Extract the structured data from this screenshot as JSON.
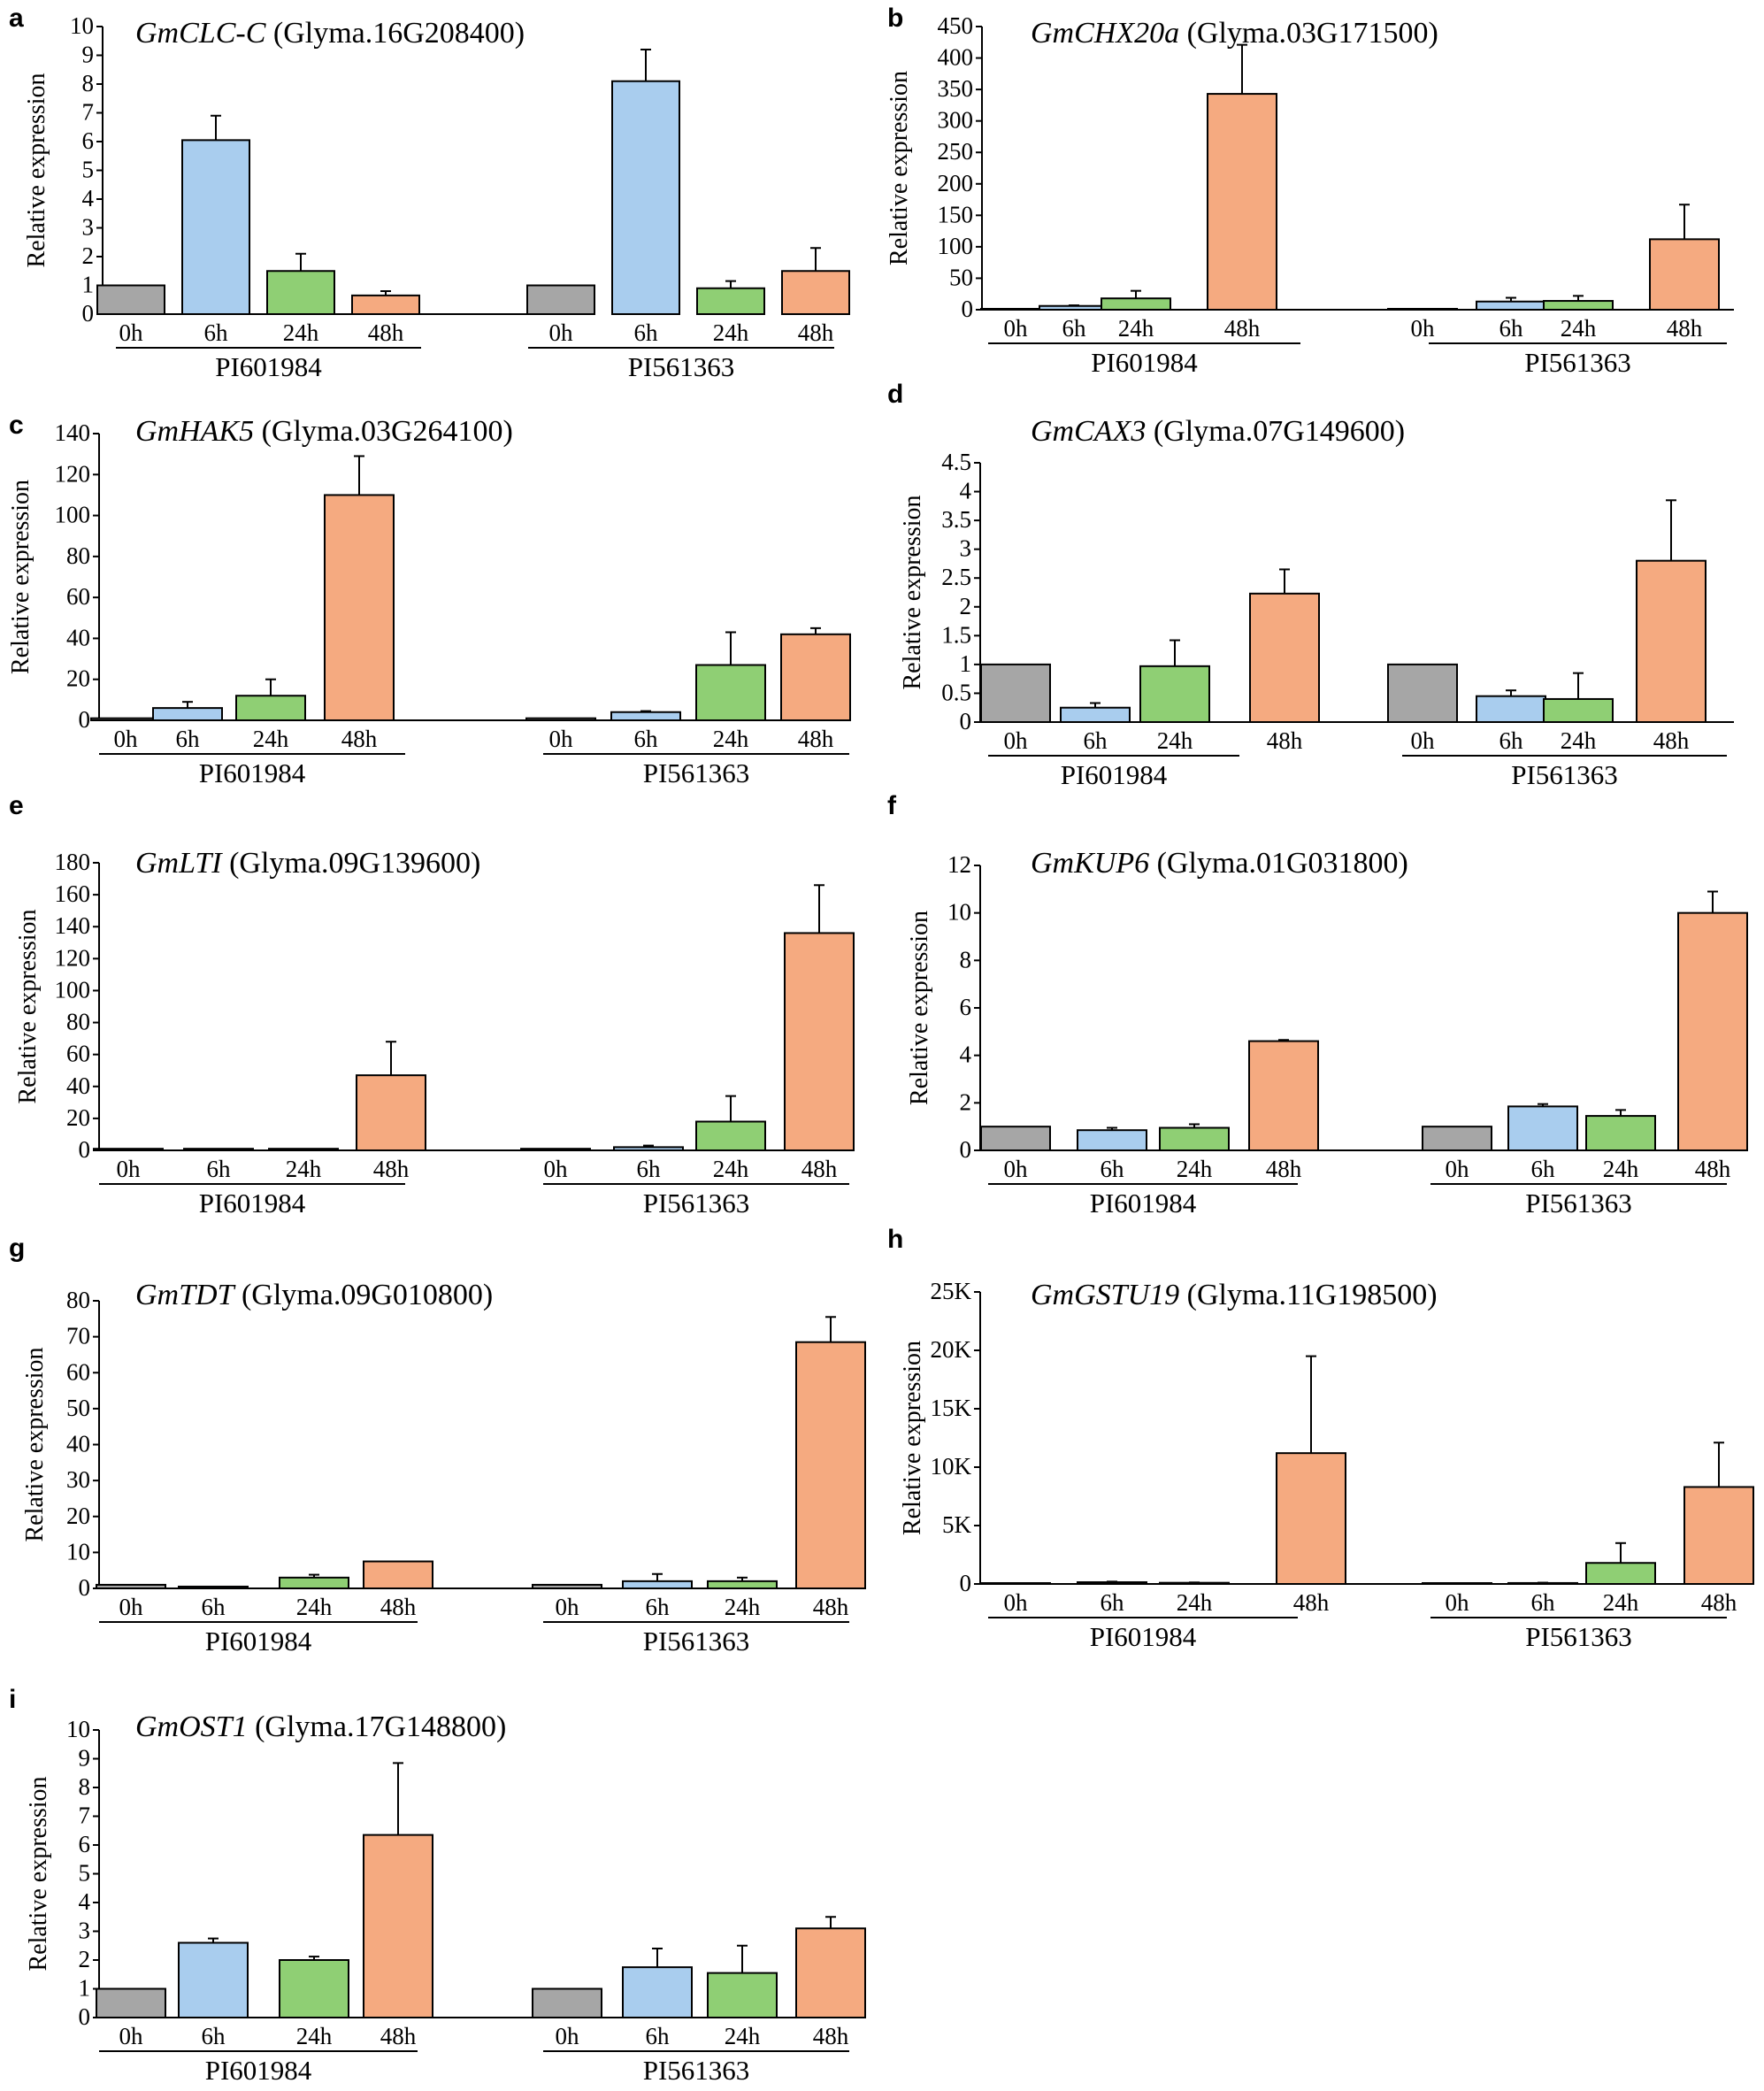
{
  "figure": {
    "ylabel": "Relative expression",
    "time_labels": [
      "0h",
      "6h",
      "24h",
      "48h"
    ],
    "genotypes": [
      "PI601984",
      "PI561363"
    ],
    "colors": {
      "0h": "#a6a6a6",
      "6h": "#a9cdee",
      "24h": "#8fcf74",
      "48h": "#f5aa80",
      "axis": "#000000"
    }
  },
  "chart_data": [
    {
      "panel": "a",
      "type": "bar",
      "gene": "GmCLC-C",
      "locus": "(Glyma.16G208400)",
      "categories": [
        "0h",
        "6h",
        "24h",
        "48h"
      ],
      "groups": [
        "PI601984",
        "PI561363"
      ],
      "series": [
        {
          "name": "PI601984",
          "values": [
            1.0,
            6.05,
            1.5,
            0.65
          ],
          "errors": [
            0.0,
            0.85,
            0.6,
            0.15
          ]
        },
        {
          "name": "PI561363",
          "values": [
            1.0,
            8.1,
            0.9,
            1.5
          ],
          "errors": [
            0.0,
            1.1,
            0.25,
            0.8
          ]
        }
      ],
      "ylabel": "Relative expression",
      "ylim": [
        0,
        10
      ],
      "ticks": [
        0,
        1,
        2,
        3,
        4,
        5,
        6,
        7,
        8,
        9,
        10
      ],
      "tick_labels": [
        "0",
        "1",
        "2",
        "3",
        "4",
        "5",
        "6",
        "7",
        "8",
        "9",
        "10"
      ]
    },
    {
      "panel": "b",
      "type": "bar",
      "gene": "GmCHX20a",
      "locus": "(Glyma.03G171500)",
      "categories": [
        "0h",
        "6h",
        "24h",
        "48h"
      ],
      "groups": [
        "PI601984",
        "PI561363"
      ],
      "series": [
        {
          "name": "PI601984",
          "values": [
            1,
            6,
            18,
            343
          ],
          "errors": [
            0,
            1,
            12,
            78
          ]
        },
        {
          "name": "PI561363",
          "values": [
            1,
            13,
            14,
            112
          ],
          "errors": [
            0,
            6,
            8,
            55
          ]
        }
      ],
      "ylabel": "Relative expression",
      "ylim": [
        0,
        450
      ],
      "ticks": [
        0,
        50,
        100,
        150,
        200,
        250,
        300,
        350,
        400,
        450
      ],
      "tick_labels": [
        "0",
        "50",
        "100",
        "150",
        "200",
        "250",
        "300",
        "350",
        "400",
        "450"
      ]
    },
    {
      "panel": "c",
      "type": "bar",
      "gene": "GmHAK5",
      "locus": "(Glyma.03G264100)",
      "categories": [
        "0h",
        "6h",
        "24h",
        "48h"
      ],
      "groups": [
        "PI601984",
        "PI561363"
      ],
      "series": [
        {
          "name": "PI601984",
          "values": [
            1,
            6,
            12,
            110
          ],
          "errors": [
            0,
            3,
            8,
            19
          ]
        },
        {
          "name": "PI561363",
          "values": [
            1,
            4,
            27,
            42
          ],
          "errors": [
            0,
            0.5,
            16,
            3
          ]
        }
      ],
      "ylabel": "Relative expression",
      "ylim": [
        0,
        140
      ],
      "ticks": [
        0,
        20,
        40,
        60,
        80,
        100,
        120,
        140
      ],
      "tick_labels": [
        "0",
        "20",
        "40",
        "60",
        "80",
        "100",
        "120",
        "140"
      ]
    },
    {
      "panel": "d",
      "type": "bar",
      "gene": "GmCAX3",
      "locus": "(Glyma.07G149600)",
      "categories": [
        "0h",
        "6h",
        "24h",
        "48h"
      ],
      "groups": [
        "PI601984",
        "PI561363"
      ],
      "series": [
        {
          "name": "PI601984",
          "values": [
            1.0,
            0.25,
            0.97,
            2.23
          ],
          "errors": [
            0.0,
            0.08,
            0.45,
            0.42
          ]
        },
        {
          "name": "PI561363",
          "values": [
            1.0,
            0.45,
            0.4,
            2.8
          ],
          "errors": [
            0.0,
            0.1,
            0.45,
            1.05
          ]
        }
      ],
      "ylabel": "Relative expression",
      "ylim": [
        0,
        4.5
      ],
      "ticks": [
        0,
        0.5,
        1,
        1.5,
        2,
        2.5,
        3,
        3.5,
        4,
        4.5
      ],
      "tick_labels": [
        "0",
        "0.5",
        "1",
        "1.5",
        "2",
        "2.5",
        "3",
        "3.5",
        "4",
        "4.5"
      ]
    },
    {
      "panel": "e",
      "type": "bar",
      "gene": "GmLTI",
      "locus": "(Glyma.09G139600)",
      "categories": [
        "0h",
        "6h",
        "24h",
        "48h"
      ],
      "groups": [
        "PI601984",
        "PI561363"
      ],
      "series": [
        {
          "name": "PI601984",
          "values": [
            1,
            1,
            1,
            47
          ],
          "errors": [
            0,
            0,
            0,
            21
          ]
        },
        {
          "name": "PI561363",
          "values": [
            1,
            2,
            18,
            136
          ],
          "errors": [
            0,
            1,
            16,
            30
          ]
        }
      ],
      "ylabel": "Relative expression",
      "ylim": [
        0,
        180
      ],
      "ticks": [
        0,
        20,
        40,
        60,
        80,
        100,
        120,
        140,
        160,
        180
      ],
      "tick_labels": [
        "0",
        "20",
        "40",
        "60",
        "80",
        "100",
        "120",
        "140",
        "160",
        "180"
      ]
    },
    {
      "panel": "f",
      "type": "bar",
      "gene": "GmKUP6",
      "locus": "(Glyma.01G031800)",
      "categories": [
        "0h",
        "6h",
        "24h",
        "48h"
      ],
      "groups": [
        "PI601984",
        "PI561363"
      ],
      "series": [
        {
          "name": "PI601984",
          "values": [
            1.0,
            0.85,
            0.95,
            4.6
          ],
          "errors": [
            0.0,
            0.1,
            0.15,
            0.05
          ]
        },
        {
          "name": "PI561363",
          "values": [
            1.0,
            1.85,
            1.45,
            10.0
          ],
          "errors": [
            0.0,
            0.1,
            0.25,
            0.9
          ]
        }
      ],
      "ylabel": "Relative expression",
      "ylim": [
        0,
        12
      ],
      "ticks": [
        0,
        2,
        4,
        6,
        8,
        10,
        12
      ],
      "tick_labels": [
        "0",
        "2",
        "4",
        "6",
        "8",
        "10",
        "12"
      ]
    },
    {
      "panel": "g",
      "type": "bar",
      "gene": "GmTDT",
      "locus": "(Glyma.09G010800)",
      "categories": [
        "0h",
        "6h",
        "24h",
        "48h"
      ],
      "groups": [
        "PI601984",
        "PI561363"
      ],
      "series": [
        {
          "name": "PI601984",
          "values": [
            1,
            0.5,
            3,
            7.5
          ],
          "errors": [
            0,
            0,
            0.8,
            0
          ]
        },
        {
          "name": "PI561363",
          "values": [
            1,
            2,
            2,
            68.5
          ],
          "errors": [
            0,
            2,
            1,
            7
          ]
        }
      ],
      "ylabel": "Relative expression",
      "ylim": [
        0,
        80
      ],
      "ticks": [
        0,
        10,
        20,
        30,
        40,
        50,
        60,
        70,
        80
      ],
      "tick_labels": [
        "0",
        "10",
        "20",
        "30",
        "40",
        "50",
        "60",
        "70",
        "80"
      ]
    },
    {
      "panel": "h",
      "type": "bar",
      "gene": "GmGSTU19",
      "locus": "(Glyma.11G198500)",
      "categories": [
        "0h",
        "6h",
        "24h",
        "48h"
      ],
      "groups": [
        "PI601984",
        "PI561363"
      ],
      "series": [
        {
          "name": "PI601984",
          "values": [
            1,
            150,
            100,
            11200
          ],
          "errors": [
            0,
            50,
            30,
            8300
          ]
        },
        {
          "name": "PI561363",
          "values": [
            1,
            80,
            1800,
            8300
          ],
          "errors": [
            0,
            30,
            1700,
            3800
          ]
        }
      ],
      "ylabel": "Relative expression",
      "ylim": [
        0,
        25000
      ],
      "ticks": [
        0,
        5000,
        10000,
        15000,
        20000,
        25000
      ],
      "tick_labels": [
        "0",
        "5K",
        "10K",
        "15K",
        "20K",
        "25K"
      ]
    },
    {
      "panel": "i",
      "type": "bar",
      "gene": "GmOST1",
      "locus": "(Glyma.17G148800)",
      "categories": [
        "0h",
        "6h",
        "24h",
        "48h"
      ],
      "groups": [
        "PI601984",
        "PI561363"
      ],
      "series": [
        {
          "name": "PI601984",
          "values": [
            1.0,
            2.6,
            2.0,
            6.35
          ],
          "errors": [
            0.0,
            0.15,
            0.12,
            2.5
          ]
        },
        {
          "name": "PI561363",
          "values": [
            1.0,
            1.75,
            1.55,
            3.1
          ],
          "errors": [
            0.0,
            0.65,
            0.95,
            0.4
          ]
        }
      ],
      "ylabel": "Relative expression",
      "ylim": [
        0,
        10
      ],
      "ticks": [
        0,
        1,
        2,
        3,
        4,
        5,
        6,
        7,
        8,
        9,
        10
      ],
      "tick_labels": [
        "0",
        "1",
        "2",
        "3",
        "4",
        "5",
        "6",
        "7",
        "8",
        "9",
        "10"
      ]
    }
  ]
}
